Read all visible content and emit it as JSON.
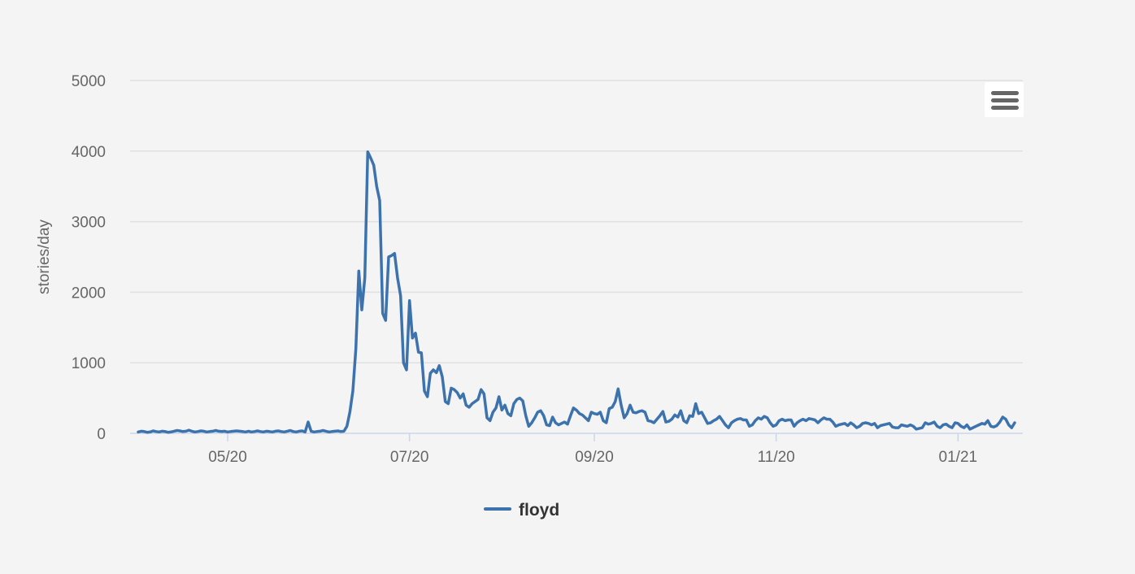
{
  "chart_data": {
    "type": "line",
    "ylabel": "stories/day",
    "xlabel": "",
    "title": "",
    "ylim": [
      0,
      5000
    ],
    "y_ticks": [
      0,
      1000,
      2000,
      3000,
      4000,
      5000
    ],
    "x_ticks": [
      "05/20",
      "07/20",
      "09/20",
      "11/20",
      "01/21"
    ],
    "grid": true,
    "legend_position": "bottom-center",
    "series": [
      {
        "name": "floyd",
        "color": "#3d73ad",
        "x_start": "2020-04-01",
        "values": [
          20,
          30,
          25,
          15,
          20,
          35,
          25,
          20,
          30,
          25,
          15,
          20,
          30,
          40,
          35,
          25,
          30,
          45,
          30,
          20,
          25,
          35,
          30,
          20,
          25,
          30,
          40,
          30,
          25,
          30,
          20,
          25,
          30,
          35,
          30,
          25,
          20,
          30,
          20,
          25,
          35,
          25,
          20,
          30,
          25,
          20,
          30,
          35,
          25,
          20,
          30,
          40,
          25,
          20,
          30,
          35,
          20,
          160,
          30,
          20,
          25,
          30,
          40,
          30,
          20,
          25,
          30,
          35,
          25,
          30,
          100,
          300,
          600,
          1200,
          2300,
          1750,
          2200,
          3990,
          3900,
          3800,
          3500,
          3300,
          1700,
          1600,
          2500,
          2520,
          2550,
          2200,
          1950,
          1000,
          900,
          1880,
          1350,
          1420,
          1150,
          1140,
          600,
          520,
          850,
          900,
          860,
          960,
          800,
          450,
          420,
          640,
          620,
          580,
          500,
          560,
          400,
          370,
          420,
          450,
          480,
          620,
          560,
          220,
          180,
          300,
          360,
          520,
          330,
          400,
          280,
          250,
          420,
          480,
          500,
          460,
          250,
          100,
          150,
          220,
          300,
          320,
          250,
          120,
          110,
          230,
          150,
          120,
          140,
          160,
          130,
          250,
          360,
          330,
          280,
          260,
          220,
          180,
          300,
          280,
          270,
          300,
          180,
          150,
          350,
          370,
          450,
          630,
          400,
          220,
          280,
          400,
          300,
          290,
          310,
          320,
          300,
          180,
          170,
          150,
          200,
          250,
          310,
          160,
          170,
          200,
          260,
          230,
          320,
          180,
          150,
          250,
          240,
          420,
          280,
          300,
          220,
          140,
          150,
          180,
          200,
          240,
          180,
          120,
          80,
          150,
          180,
          200,
          210,
          190,
          190,
          100,
          120,
          180,
          220,
          200,
          240,
          220,
          150,
          100,
          120,
          180,
          200,
          180,
          190,
          190,
          100,
          150,
          180,
          200,
          180,
          210,
          200,
          190,
          150,
          190,
          220,
          200,
          200,
          160,
          100,
          120,
          130,
          140,
          110,
          150,
          120,
          80,
          100,
          140,
          150,
          140,
          120,
          140,
          80,
          110,
          120,
          130,
          140,
          90,
          80,
          80,
          120,
          110,
          100,
          120,
          100,
          60,
          70,
          80,
          150,
          130,
          140,
          160,
          100,
          80,
          120,
          130,
          100,
          80,
          150,
          140,
          100,
          80,
          120,
          60,
          80,
          100,
          120,
          140,
          130,
          180,
          100,
          90,
          110,
          160,
          230,
          200,
          120,
          80,
          150
        ]
      }
    ]
  },
  "legend": {
    "label": "floyd"
  },
  "colors": {
    "background": "#f4f4f4",
    "series": "#3d73ad",
    "grid": "#e0e0e0",
    "axis": "#ccd6eb",
    "menu_icon": "#666666"
  },
  "icons": {
    "menu": "hamburger-menu-icon"
  }
}
